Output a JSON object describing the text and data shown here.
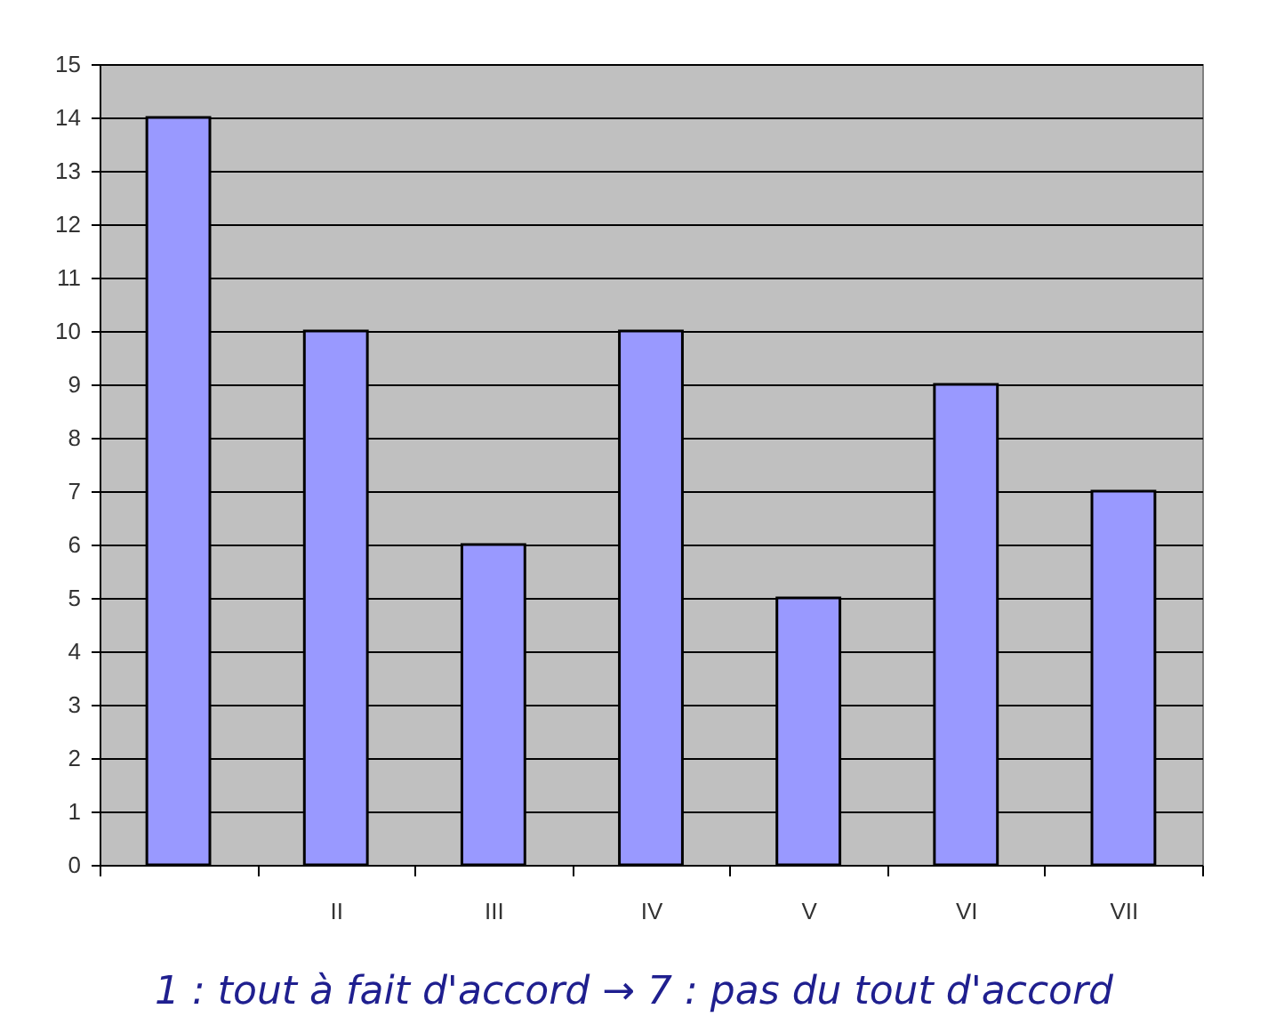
{
  "chart_data": {
    "type": "bar",
    "categories": [
      null,
      "II",
      "III",
      "IV",
      "V",
      "VI",
      "VII"
    ],
    "values": [
      14,
      10,
      6,
      10,
      5,
      9,
      7
    ],
    "color": "#9999ff",
    "ylim": [
      0,
      15
    ],
    "yticks": [
      0,
      1,
      2,
      3,
      4,
      5,
      6,
      7,
      8,
      9,
      10,
      11,
      12,
      13,
      14,
      15
    ],
    "grid": "y",
    "annotations": [
      "1 : tout à fait d'accord → 7 : pas du tout d'accord"
    ]
  }
}
